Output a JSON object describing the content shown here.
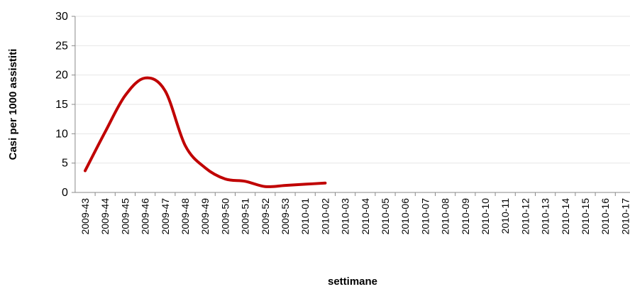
{
  "chart_data": {
    "type": "line",
    "x_label": "settimane",
    "y_label": "Casi per 1000 assistiti",
    "categories": [
      "2009-43",
      "2009-44",
      "2009-45",
      "2009-46",
      "2009-47",
      "2009-48",
      "2009-49",
      "2009-50",
      "2009-51",
      "2009-52",
      "2009-53",
      "2010-01",
      "2010-02",
      "2010-03",
      "2010-04",
      "2010-05",
      "2010-06",
      "2010-07",
      "2010-08",
      "2010-09",
      "2010-10",
      "2010-11",
      "2010-12",
      "2010-13",
      "2010-14",
      "2010-15",
      "2010-16",
      "2010-17"
    ],
    "series": [
      {
        "color": "#c00000",
        "values": [
          3.7,
          10.3,
          16.5,
          19.5,
          17.3,
          8,
          4.2,
          2.3,
          1.9,
          1.0,
          1.2,
          1.4,
          1.6,
          null,
          null,
          null,
          null,
          null,
          null,
          null,
          null,
          null,
          null,
          null,
          null,
          null,
          null,
          null
        ]
      }
    ],
    "ylim": [
      0,
      30
    ],
    "yticks": [
      0,
      5,
      10,
      15,
      20,
      25,
      30
    ],
    "grid": true,
    "smooth": true
  }
}
